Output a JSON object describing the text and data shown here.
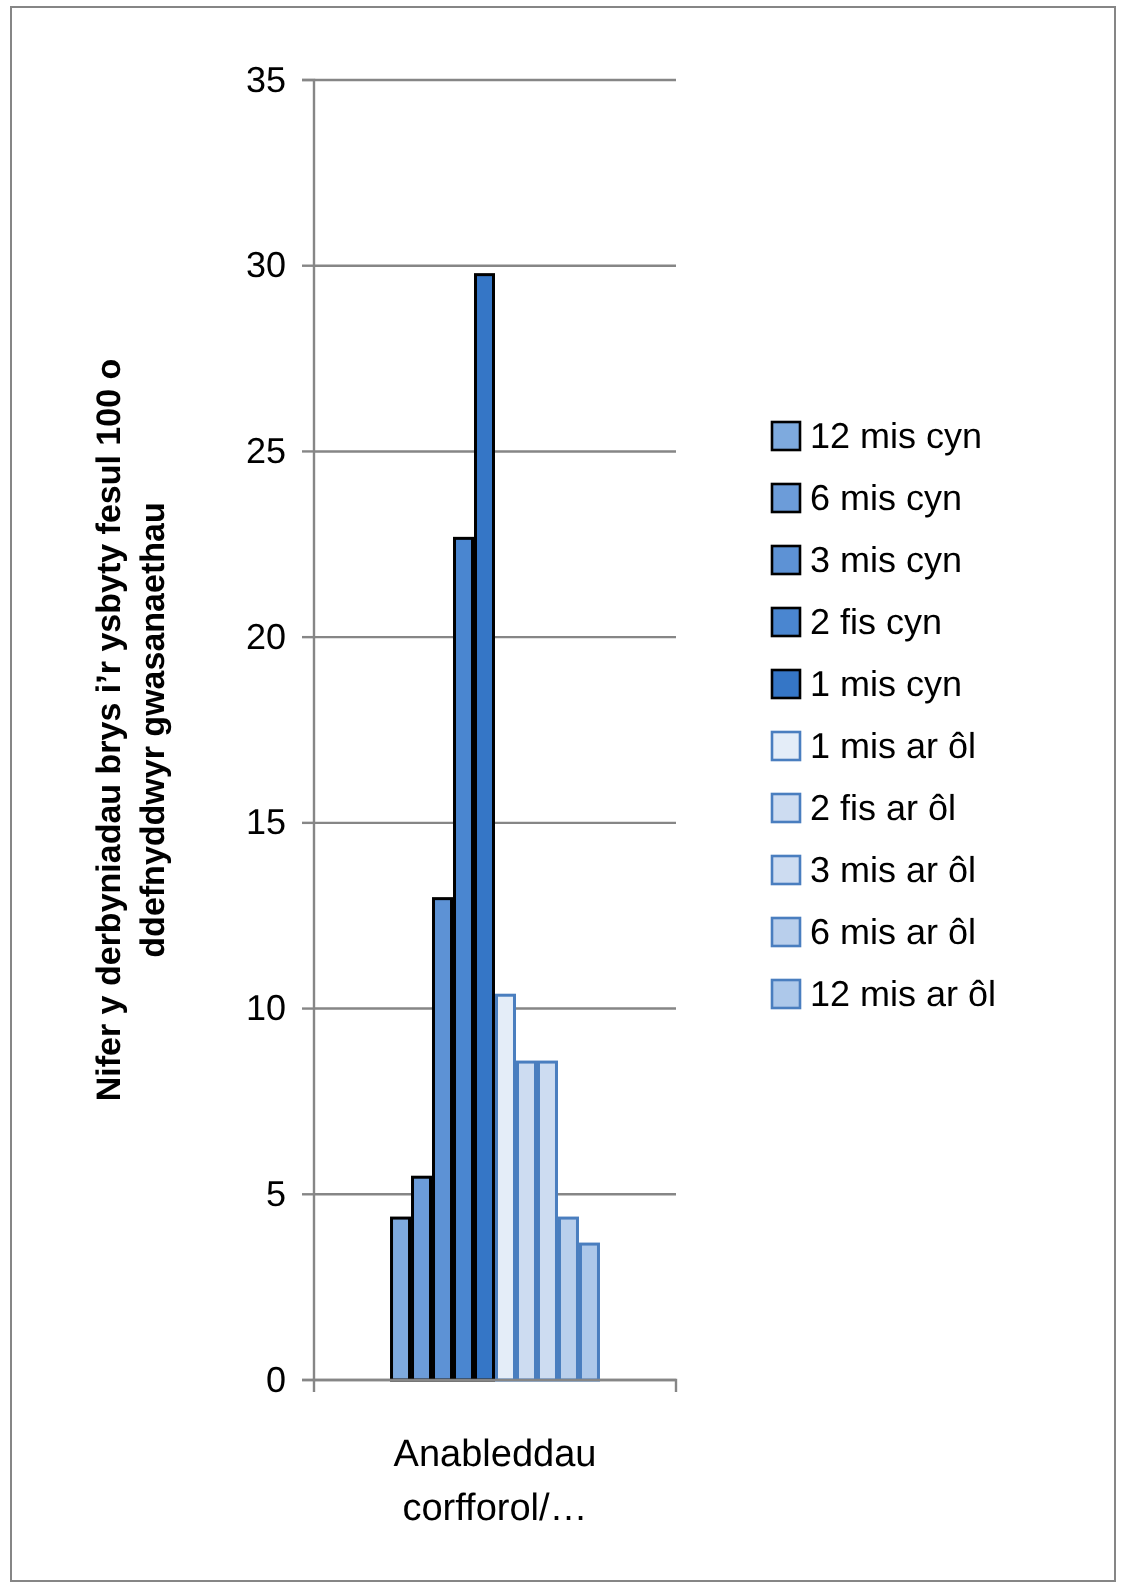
{
  "chart_data": {
    "type": "bar",
    "ylabel": "Nifer y derbyniadau brys i’r ysbyty fesul 100 o ddefnyddwyr gwasanaethau",
    "categories": [
      "Anableddau corfforol/…"
    ],
    "series": [
      {
        "name": "12 mis cyn",
        "color": "#7eaade",
        "values": [
          4.4
        ]
      },
      {
        "name": "6 mis cyn",
        "color": "#6c9cd9",
        "values": [
          5.5
        ]
      },
      {
        "name": "3 mis cyn",
        "color": "#5d92d5",
        "values": [
          13.0
        ]
      },
      {
        "name": "2 fis cyn",
        "color": "#4a86d0",
        "values": [
          22.7
        ]
      },
      {
        "name": "1 mis cyn",
        "color": "#3576c6",
        "values": [
          29.8
        ]
      },
      {
        "name": "1 mis ar ôl",
        "color": "#e4edf8",
        "values": [
          10.4
        ]
      },
      {
        "name": "2 fis ar ôl",
        "color": "#cddcf1",
        "values": [
          8.6
        ]
      },
      {
        "name": "3 mis ar ôl",
        "color": "#cddcf1",
        "values": [
          8.6
        ]
      },
      {
        "name": "6 mis ar ôl",
        "color": "#b9cfec",
        "values": [
          4.4
        ]
      },
      {
        "name": "12 mis ar ôl",
        "color": "#adc8ea",
        "values": [
          3.7
        ]
      }
    ],
    "ylim": [
      0,
      35
    ],
    "yticks": [
      0,
      5,
      10,
      15,
      20,
      25,
      30,
      35
    ],
    "grid": "y",
    "legend": "right"
  }
}
